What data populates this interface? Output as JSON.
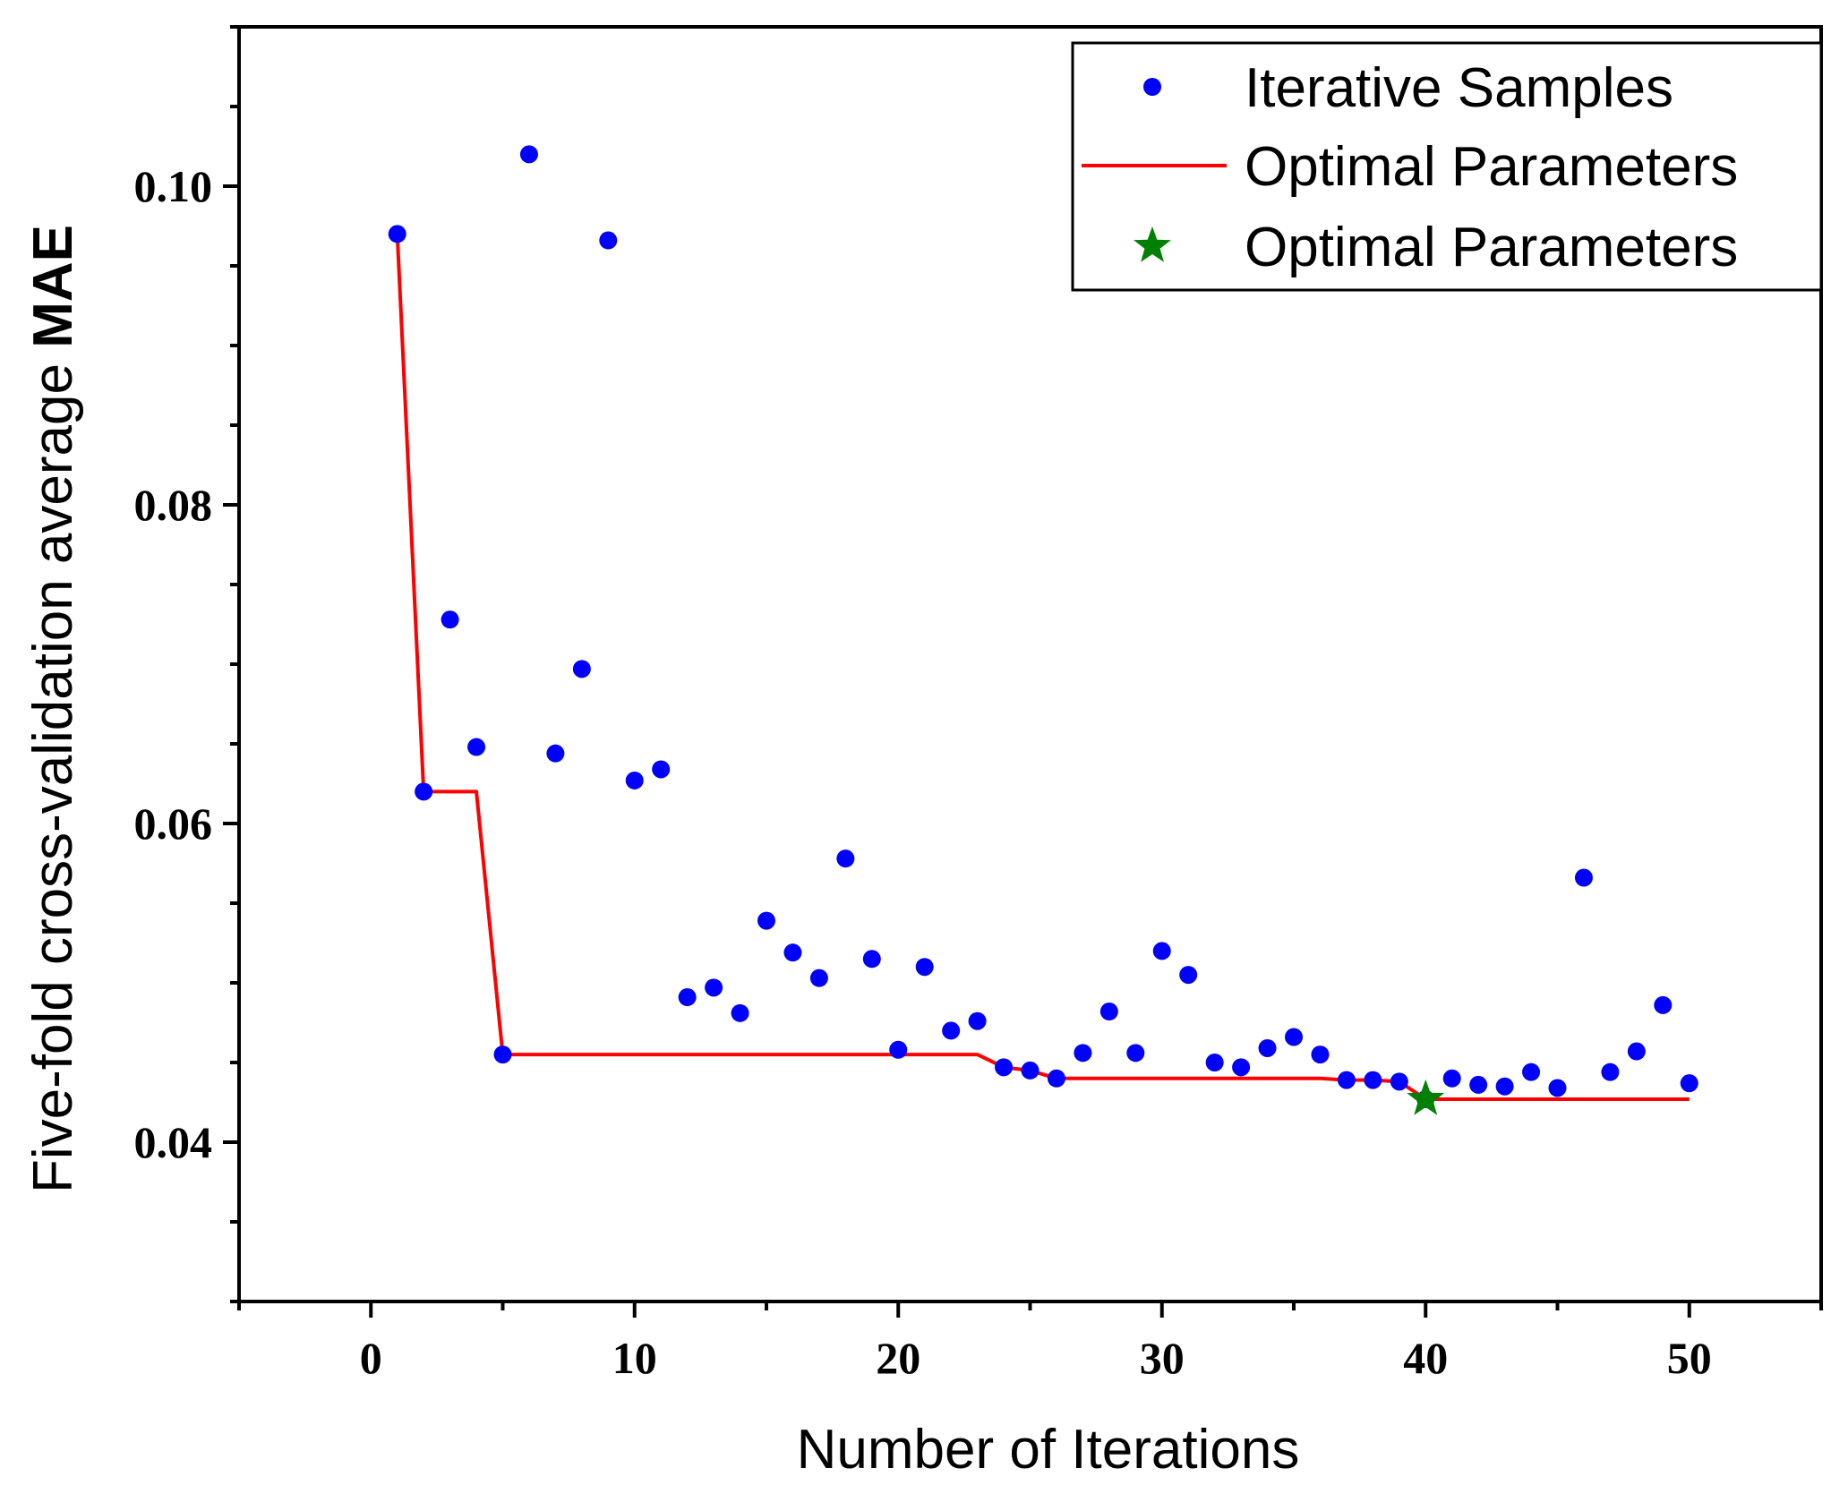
{
  "chart_data": {
    "type": "scatter",
    "title": "",
    "xlabel": "Number of Iterations",
    "ylabel_prefix": "Five-fold cross-validation average ",
    "ylabel_bold": "MAE",
    "xlim": [
      -5,
      55
    ],
    "ylim": [
      0.03,
      0.11
    ],
    "xticks": [
      0,
      10,
      20,
      30,
      40,
      50
    ],
    "xtick_labels": [
      "0",
      "10",
      "20",
      "30",
      "40",
      "50"
    ],
    "yticks": [
      0.04,
      0.06,
      0.08,
      0.1
    ],
    "ytick_labels": [
      "0.04",
      "0.06",
      "0.08",
      "0.10"
    ],
    "grid": false,
    "legend_position": "top-right",
    "series": [
      {
        "name": "Iterative Samples",
        "kind": "scatter",
        "color": "#0000ff",
        "x": [
          1,
          2,
          3,
          4,
          5,
          6,
          7,
          8,
          9,
          10,
          11,
          12,
          13,
          14,
          15,
          16,
          17,
          18,
          19,
          20,
          21,
          22,
          23,
          24,
          25,
          26,
          27,
          28,
          29,
          30,
          31,
          32,
          33,
          34,
          35,
          36,
          37,
          38,
          39,
          40,
          41,
          42,
          43,
          44,
          45,
          46,
          47,
          48,
          49,
          50
        ],
        "y": [
          0.097,
          0.062,
          0.0728,
          0.0648,
          0.0455,
          0.102,
          0.0644,
          0.0697,
          0.0966,
          0.0627,
          0.0634,
          0.0491,
          0.0497,
          0.0481,
          0.0539,
          0.0519,
          0.0503,
          0.0578,
          0.0515,
          0.0458,
          0.051,
          0.047,
          0.0476,
          0.0447,
          0.0445,
          0.044,
          0.0456,
          0.0482,
          0.0456,
          0.052,
          0.0505,
          0.045,
          0.0447,
          0.0459,
          0.0466,
          0.0455,
          0.0439,
          0.0439,
          0.0438,
          0.0427,
          0.044,
          0.0436,
          0.0435,
          0.0444,
          0.0434,
          0.0566,
          0.0444,
          0.0457,
          0.0486,
          0.0437
        ]
      },
      {
        "name": "Optimal Parameters",
        "kind": "line",
        "color": "#ff0000",
        "x": [
          1,
          2,
          3,
          4,
          5,
          6,
          7,
          8,
          9,
          10,
          11,
          12,
          13,
          14,
          15,
          16,
          17,
          18,
          19,
          20,
          21,
          22,
          23,
          24,
          25,
          26,
          27,
          28,
          29,
          30,
          31,
          32,
          33,
          34,
          35,
          36,
          37,
          38,
          39,
          40,
          41,
          42,
          43,
          44,
          45,
          46,
          47,
          48,
          49,
          50
        ],
        "y": [
          0.097,
          0.062,
          0.062,
          0.062,
          0.0455,
          0.0455,
          0.0455,
          0.0455,
          0.0455,
          0.0455,
          0.0455,
          0.0455,
          0.0455,
          0.0455,
          0.0455,
          0.0455,
          0.0455,
          0.0455,
          0.0455,
          0.0455,
          0.0455,
          0.0455,
          0.0455,
          0.0447,
          0.0445,
          0.044,
          0.044,
          0.044,
          0.044,
          0.044,
          0.044,
          0.044,
          0.044,
          0.044,
          0.044,
          0.044,
          0.0439,
          0.0439,
          0.0438,
          0.0427,
          0.0427,
          0.0427,
          0.0427,
          0.0427,
          0.0427,
          0.0427,
          0.0427,
          0.0427,
          0.0427,
          0.0427
        ]
      },
      {
        "name": "Optimal Parameters",
        "kind": "star",
        "color": "#008000",
        "x": [
          40
        ],
        "y": [
          0.0427
        ]
      }
    ]
  }
}
